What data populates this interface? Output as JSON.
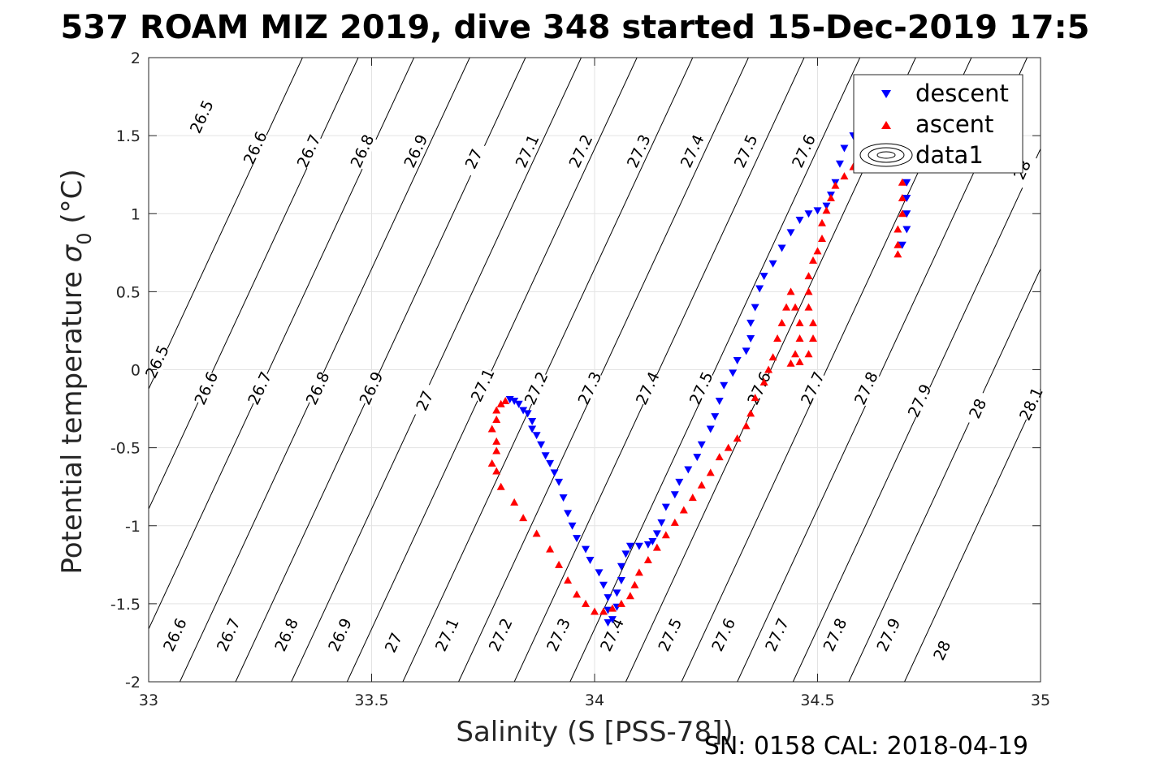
{
  "figure": {
    "title": "537 ROAM MIZ 2019, dive 348 started 15-Dec-2019 17:5",
    "footer": "SN: 0158  CAL: 2018-04-19"
  },
  "chart_data": {
    "type": "scatter",
    "xlabel": "Salinity (S [PSS-78])",
    "ylabel_main": "Potential temperature ",
    "ylabel_sym": "σ",
    "ylabel_sub": "0",
    "ylabel_unit": " (°C)",
    "xlim": [
      33,
      35
    ],
    "ylim": [
      -2,
      2
    ],
    "x_ticks": [
      "33",
      "33.5",
      "34",
      "34.5",
      "35"
    ],
    "x_tick_values": [
      33,
      33.5,
      34,
      34.5,
      35
    ],
    "y_ticks": [
      "2",
      "1.5",
      "1",
      "0.5",
      "0",
      "-0.5",
      "-1",
      "-1.5",
      "-2"
    ],
    "y_tick_values": [
      2,
      1.5,
      1,
      0.5,
      0,
      -0.5,
      -1,
      -1.5,
      -2
    ],
    "grid": true,
    "legend_position": "top-right",
    "legend": [
      {
        "label": "descent",
        "marker": "triangle-down",
        "color": "#0000ff"
      },
      {
        "label": "ascent",
        "marker": "triangle-up",
        "color": "#ff0000"
      },
      {
        "label": "data1",
        "marker": "contour",
        "color": "#000000"
      }
    ],
    "density_contours": [
      "26.5",
      "26.6",
      "26.7",
      "26.8",
      "26.9",
      "27",
      "27.1",
      "27.2",
      "27.3",
      "27.4",
      "27.5",
      "27.6",
      "27.7",
      "27.8",
      "27.9",
      "28",
      "28.1"
    ],
    "contour_labels_top": [
      {
        "label": "26.5",
        "s": 33.12,
        "t": 1.62
      },
      {
        "label": "26.6",
        "s": 33.24,
        "t": 1.42
      },
      {
        "label": "26.7",
        "s": 33.36,
        "t": 1.4
      },
      {
        "label": "26.8",
        "s": 33.48,
        "t": 1.4
      },
      {
        "label": "26.9",
        "s": 33.6,
        "t": 1.4
      },
      {
        "label": "27",
        "s": 33.73,
        "t": 1.35
      },
      {
        "label": "27.1",
        "s": 33.85,
        "t": 1.4
      },
      {
        "label": "27.2",
        "s": 33.97,
        "t": 1.4
      },
      {
        "label": "27.3",
        "s": 34.1,
        "t": 1.4
      },
      {
        "label": "27.4",
        "s": 34.22,
        "t": 1.4
      },
      {
        "label": "27.5",
        "s": 34.34,
        "t": 1.4
      },
      {
        "label": "27.6",
        "s": 34.47,
        "t": 1.4
      },
      {
        "label": "28",
        "s": 34.96,
        "t": 1.28
      }
    ],
    "contour_labels_mid": [
      {
        "label": "26.5",
        "s": 33.02,
        "t": 0.05
      },
      {
        "label": "26.6",
        "s": 33.13,
        "t": -0.12
      },
      {
        "label": "26.7",
        "s": 33.25,
        "t": -0.12
      },
      {
        "label": "26.8",
        "s": 33.38,
        "t": -0.12
      },
      {
        "label": "26.9",
        "s": 33.5,
        "t": -0.12
      },
      {
        "label": "27",
        "s": 33.62,
        "t": -0.2
      },
      {
        "label": "27.1",
        "s": 33.75,
        "t": -0.1
      },
      {
        "label": "27.2",
        "s": 33.87,
        "t": -0.12
      },
      {
        "label": "27.3",
        "s": 33.99,
        "t": -0.12
      },
      {
        "label": "27.4",
        "s": 34.12,
        "t": -0.12
      },
      {
        "label": "27.5",
        "s": 34.24,
        "t": -0.12
      },
      {
        "label": "27.6",
        "s": 34.37,
        "t": -0.12
      },
      {
        "label": "27.7",
        "s": 34.49,
        "t": -0.12
      },
      {
        "label": "27.8",
        "s": 34.61,
        "t": -0.12
      },
      {
        "label": "27.9",
        "s": 34.73,
        "t": -0.2
      },
      {
        "label": "28",
        "s": 34.86,
        "t": -0.25
      },
      {
        "label": "28.1",
        "s": 34.98,
        "t": -0.22
      }
    ],
    "contour_labels_bottom": [
      {
        "label": "26.6",
        "s": 33.06,
        "t": -1.7
      },
      {
        "label": "26.7",
        "s": 33.18,
        "t": -1.7
      },
      {
        "label": "26.8",
        "s": 33.31,
        "t": -1.7
      },
      {
        "label": "26.9",
        "s": 33.43,
        "t": -1.7
      },
      {
        "label": "27",
        "s": 33.55,
        "t": -1.75
      },
      {
        "label": "27.1",
        "s": 33.67,
        "t": -1.7
      },
      {
        "label": "27.2",
        "s": 33.79,
        "t": -1.7
      },
      {
        "label": "27.3",
        "s": 33.92,
        "t": -1.7
      },
      {
        "label": "27.4",
        "s": 34.04,
        "t": -1.7
      },
      {
        "label": "27.5",
        "s": 34.17,
        "t": -1.7
      },
      {
        "label": "27.6",
        "s": 34.29,
        "t": -1.7
      },
      {
        "label": "27.7",
        "s": 34.41,
        "t": -1.7
      },
      {
        "label": "27.8",
        "s": 34.54,
        "t": -1.7
      },
      {
        "label": "27.9",
        "s": 34.66,
        "t": -1.7
      },
      {
        "label": "28",
        "s": 34.78,
        "t": -1.8
      }
    ],
    "series": [
      {
        "name": "descent",
        "color": "#0000ff",
        "marker": "triangle-down",
        "points": [
          [
            33.81,
            -0.19
          ],
          [
            33.82,
            -0.2
          ],
          [
            33.83,
            -0.22
          ],
          [
            33.84,
            -0.26
          ],
          [
            33.85,
            -0.28
          ],
          [
            33.86,
            -0.33
          ],
          [
            33.86,
            -0.38
          ],
          [
            33.87,
            -0.42
          ],
          [
            33.88,
            -0.48
          ],
          [
            33.89,
            -0.55
          ],
          [
            33.9,
            -0.6
          ],
          [
            33.91,
            -0.66
          ],
          [
            33.92,
            -0.72
          ],
          [
            33.93,
            -0.82
          ],
          [
            33.94,
            -0.92
          ],
          [
            33.95,
            -1.0
          ],
          [
            33.96,
            -1.08
          ],
          [
            33.98,
            -1.15
          ],
          [
            33.99,
            -1.22
          ],
          [
            34.01,
            -1.3
          ],
          [
            34.02,
            -1.38
          ],
          [
            34.03,
            -1.46
          ],
          [
            34.03,
            -1.54
          ],
          [
            34.03,
            -1.62
          ],
          [
            34.04,
            -1.6
          ],
          [
            34.05,
            -1.52
          ],
          [
            34.05,
            -1.43
          ],
          [
            34.06,
            -1.35
          ],
          [
            34.06,
            -1.26
          ],
          [
            34.07,
            -1.18
          ],
          [
            34.08,
            -1.13
          ],
          [
            34.1,
            -1.13
          ],
          [
            34.12,
            -1.12
          ],
          [
            34.13,
            -1.1
          ],
          [
            34.14,
            -1.05
          ],
          [
            34.15,
            -0.98
          ],
          [
            34.16,
            -0.88
          ],
          [
            34.18,
            -0.8
          ],
          [
            34.19,
            -0.72
          ],
          [
            34.21,
            -0.64
          ],
          [
            34.23,
            -0.56
          ],
          [
            34.24,
            -0.48
          ],
          [
            34.26,
            -0.38
          ],
          [
            34.27,
            -0.3
          ],
          [
            34.28,
            -0.2
          ],
          [
            34.29,
            -0.1
          ],
          [
            34.31,
            -0.02
          ],
          [
            34.32,
            0.06
          ],
          [
            34.34,
            0.12
          ],
          [
            34.35,
            0.2
          ],
          [
            34.35,
            0.3
          ],
          [
            34.36,
            0.4
          ],
          [
            34.37,
            0.52
          ],
          [
            34.38,
            0.6
          ],
          [
            34.4,
            0.68
          ],
          [
            34.42,
            0.78
          ],
          [
            34.44,
            0.88
          ],
          [
            34.46,
            0.96
          ],
          [
            34.48,
            1.0
          ],
          [
            34.5,
            1.02
          ],
          [
            34.52,
            1.05
          ],
          [
            34.53,
            1.12
          ],
          [
            34.54,
            1.2
          ],
          [
            34.55,
            1.32
          ],
          [
            34.56,
            1.42
          ],
          [
            34.58,
            1.5
          ],
          [
            34.62,
            1.52
          ],
          [
            34.64,
            1.5
          ],
          [
            34.67,
            1.42
          ],
          [
            34.69,
            1.3
          ],
          [
            34.7,
            1.2
          ],
          [
            34.7,
            1.1
          ],
          [
            34.7,
            1.0
          ],
          [
            34.7,
            0.9
          ],
          [
            34.69,
            0.8
          ]
        ]
      },
      {
        "name": "ascent",
        "color": "#ff0000",
        "marker": "triangle-up",
        "points": [
          [
            33.8,
            -0.2
          ],
          [
            33.79,
            -0.22
          ],
          [
            33.78,
            -0.26
          ],
          [
            33.78,
            -0.32
          ],
          [
            33.77,
            -0.38
          ],
          [
            33.78,
            -0.46
          ],
          [
            33.78,
            -0.52
          ],
          [
            33.77,
            -0.6
          ],
          [
            33.78,
            -0.65
          ],
          [
            33.79,
            -0.75
          ],
          [
            33.82,
            -0.85
          ],
          [
            33.84,
            -0.95
          ],
          [
            33.87,
            -1.05
          ],
          [
            33.9,
            -1.15
          ],
          [
            33.92,
            -1.25
          ],
          [
            33.94,
            -1.35
          ],
          [
            33.96,
            -1.44
          ],
          [
            33.98,
            -1.5
          ],
          [
            34.0,
            -1.55
          ],
          [
            34.02,
            -1.55
          ],
          [
            34.04,
            -1.53
          ],
          [
            34.06,
            -1.5
          ],
          [
            34.08,
            -1.45
          ],
          [
            34.09,
            -1.38
          ],
          [
            34.1,
            -1.3
          ],
          [
            34.12,
            -1.22
          ],
          [
            34.14,
            -1.14
          ],
          [
            34.16,
            -1.06
          ],
          [
            34.18,
            -0.98
          ],
          [
            34.2,
            -0.9
          ],
          [
            34.22,
            -0.82
          ],
          [
            34.24,
            -0.74
          ],
          [
            34.26,
            -0.66
          ],
          [
            34.28,
            -0.56
          ],
          [
            34.3,
            -0.5
          ],
          [
            34.32,
            -0.44
          ],
          [
            34.34,
            -0.36
          ],
          [
            34.35,
            -0.28
          ],
          [
            34.36,
            -0.18
          ],
          [
            34.38,
            -0.08
          ],
          [
            34.39,
            0.0
          ],
          [
            34.4,
            0.08
          ],
          [
            34.41,
            0.2
          ],
          [
            34.42,
            0.3
          ],
          [
            34.43,
            0.4
          ],
          [
            34.44,
            0.5
          ],
          [
            34.45,
            0.4
          ],
          [
            34.46,
            0.3
          ],
          [
            34.46,
            0.2
          ],
          [
            34.45,
            0.1
          ],
          [
            34.44,
            0.04
          ],
          [
            34.46,
            0.05
          ],
          [
            34.48,
            0.1
          ],
          [
            34.49,
            0.2
          ],
          [
            34.49,
            0.3
          ],
          [
            34.48,
            0.4
          ],
          [
            34.48,
            0.5
          ],
          [
            34.48,
            0.6
          ],
          [
            34.49,
            0.7
          ],
          [
            34.5,
            0.76
          ],
          [
            34.51,
            0.84
          ],
          [
            34.51,
            0.94
          ],
          [
            34.52,
            1.02
          ],
          [
            34.53,
            1.1
          ],
          [
            34.54,
            1.18
          ],
          [
            34.56,
            1.24
          ],
          [
            34.58,
            1.3
          ],
          [
            34.6,
            1.34
          ],
          [
            34.63,
            1.36
          ],
          [
            34.66,
            1.36
          ],
          [
            34.68,
            1.3
          ],
          [
            34.69,
            1.2
          ],
          [
            34.69,
            1.1
          ],
          [
            34.69,
            1.0
          ],
          [
            34.68,
            0.9
          ],
          [
            34.68,
            0.8
          ],
          [
            34.68,
            0.74
          ]
        ]
      }
    ]
  }
}
